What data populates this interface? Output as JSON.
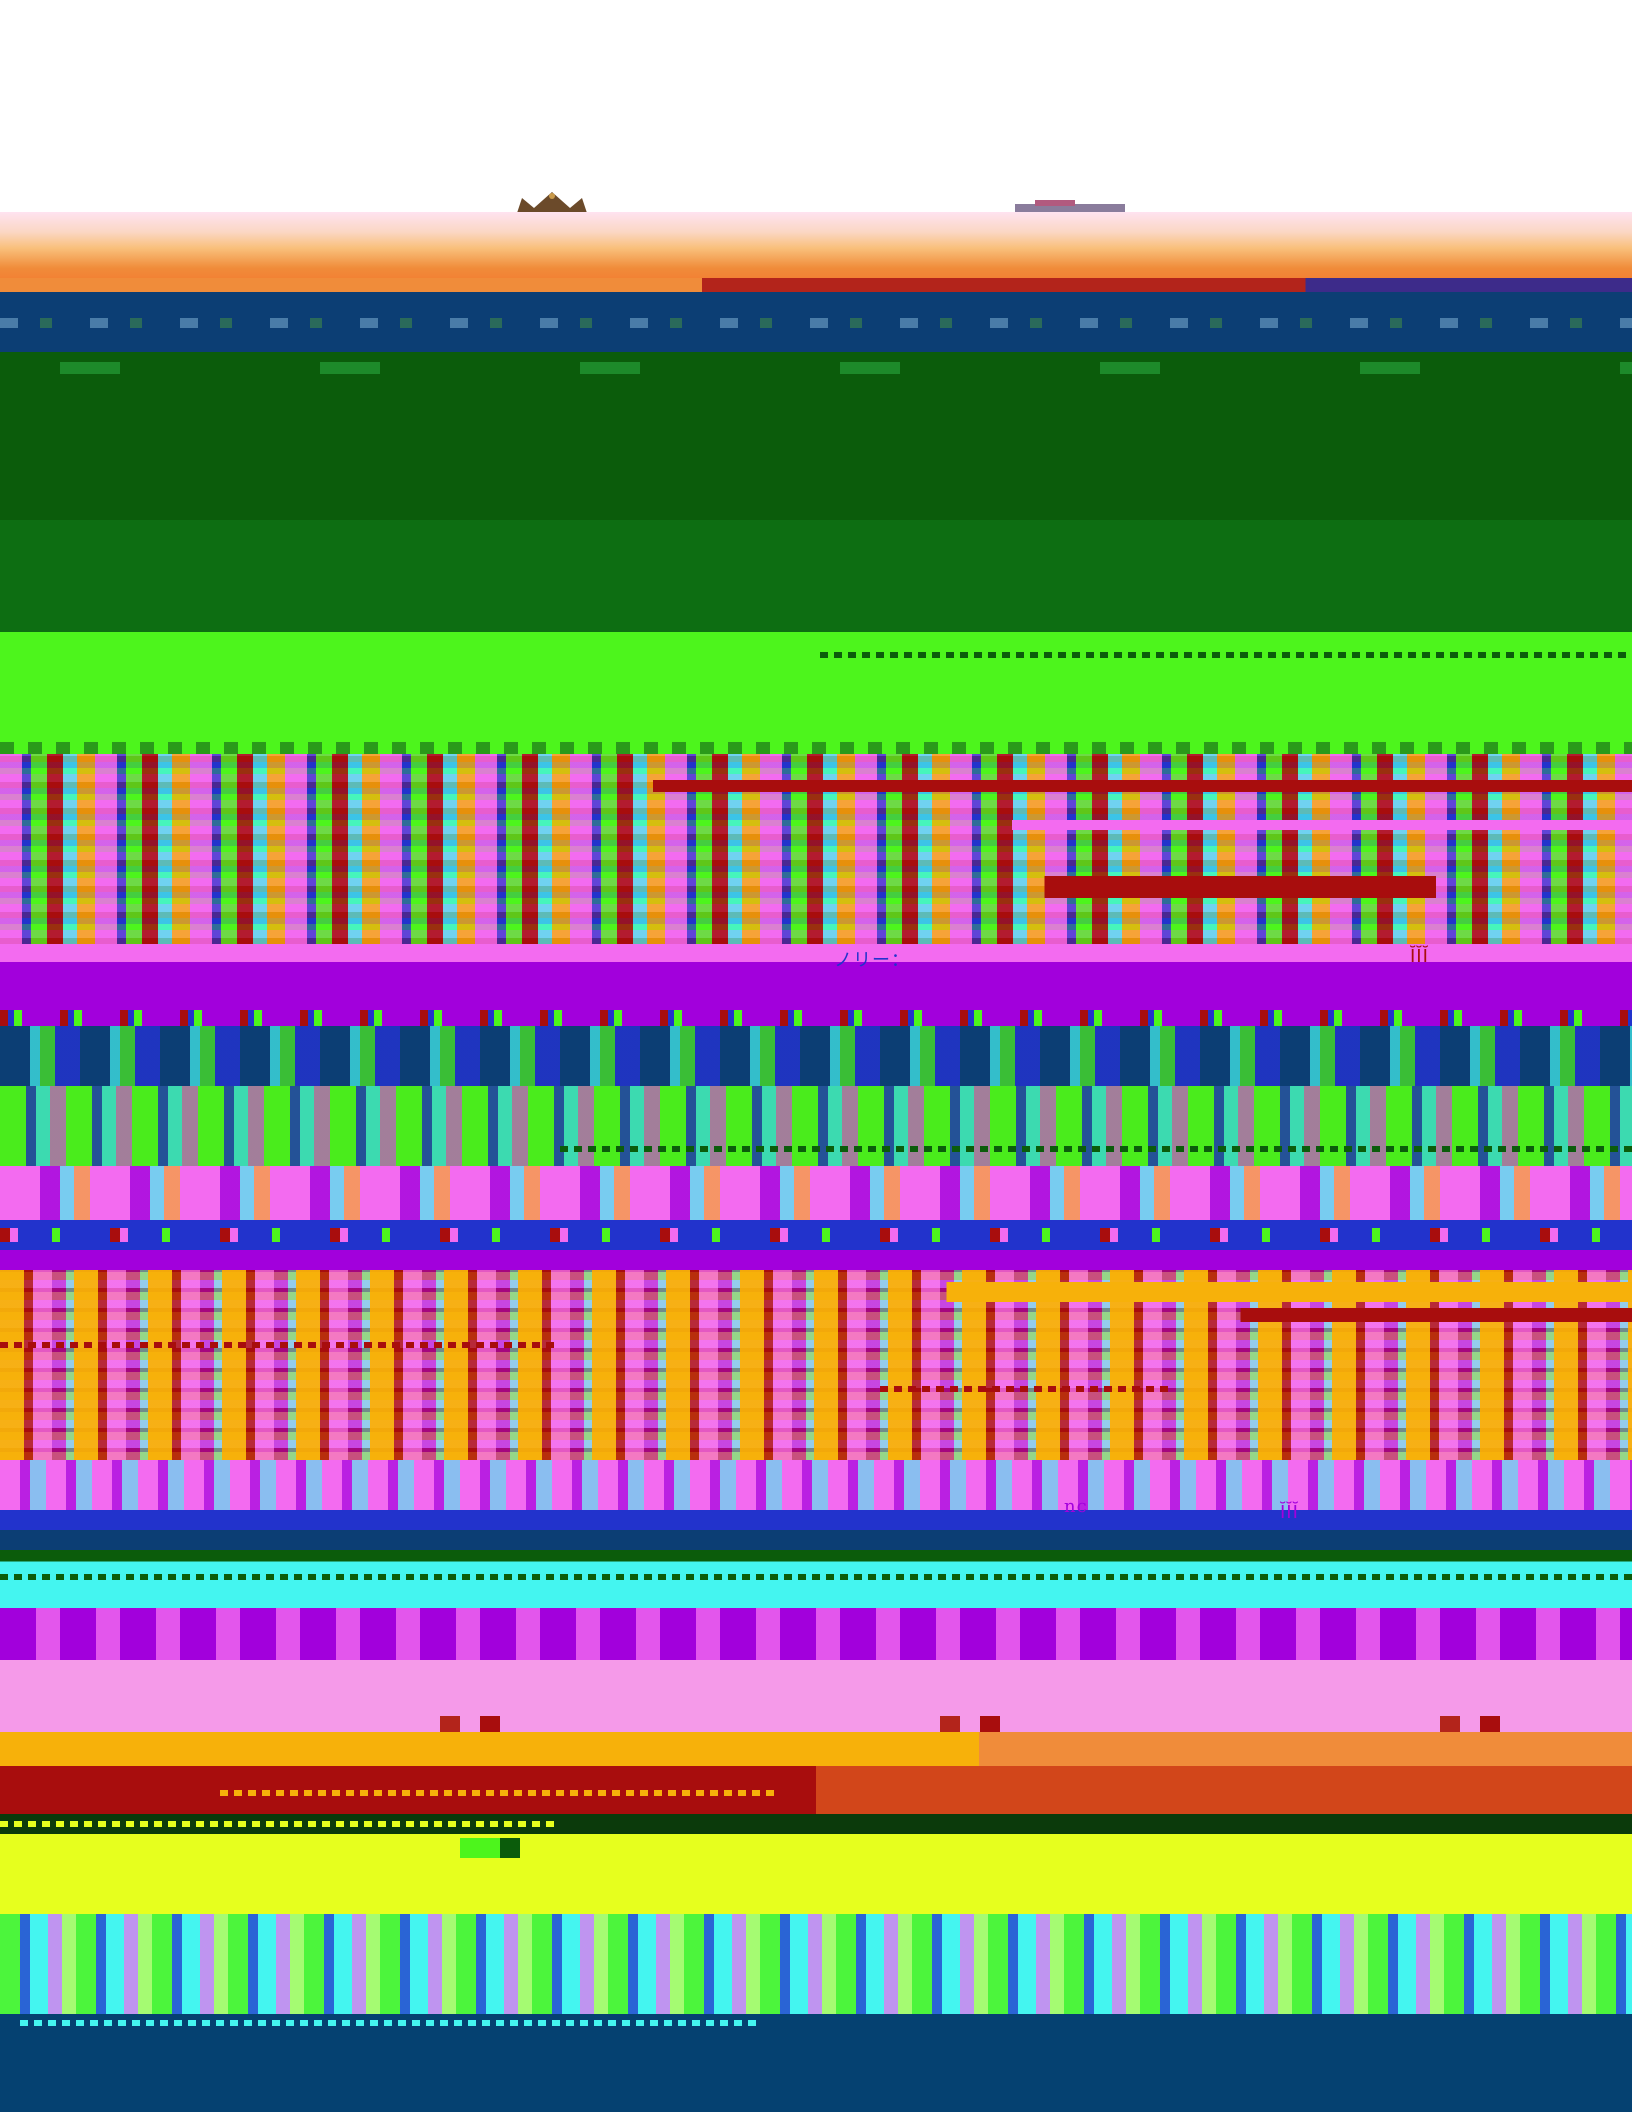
{
  "glitch_fragments": {
    "fragment_a": "ノリー：",
    "fragment_b": "ĬĬĬ",
    "fragment_c": "ĬĬĬ",
    "fragment_d": "nc"
  },
  "colors": {
    "background": "#ffffff",
    "header_peach": "#fbd7c4",
    "header_orange": "#f08c3a",
    "header_red": "#b3241b",
    "navy": "#0c3e74",
    "dark_green": "#0b5c0b",
    "forest_green": "#0d6e12",
    "lime": "#4df51c",
    "magenta": "#f36bf0",
    "violet": "#a200dc",
    "blue": "#2233cc",
    "cyan": "#44f5f0",
    "orange": "#f7b10a",
    "dark_red": "#a80d0d",
    "pink": "#f59ae9",
    "yellow": "#e6ff1e",
    "footer_blue": "#054171"
  },
  "icons": {
    "crown_logo": "crown-icon",
    "figure_mark": "figure-icon"
  }
}
